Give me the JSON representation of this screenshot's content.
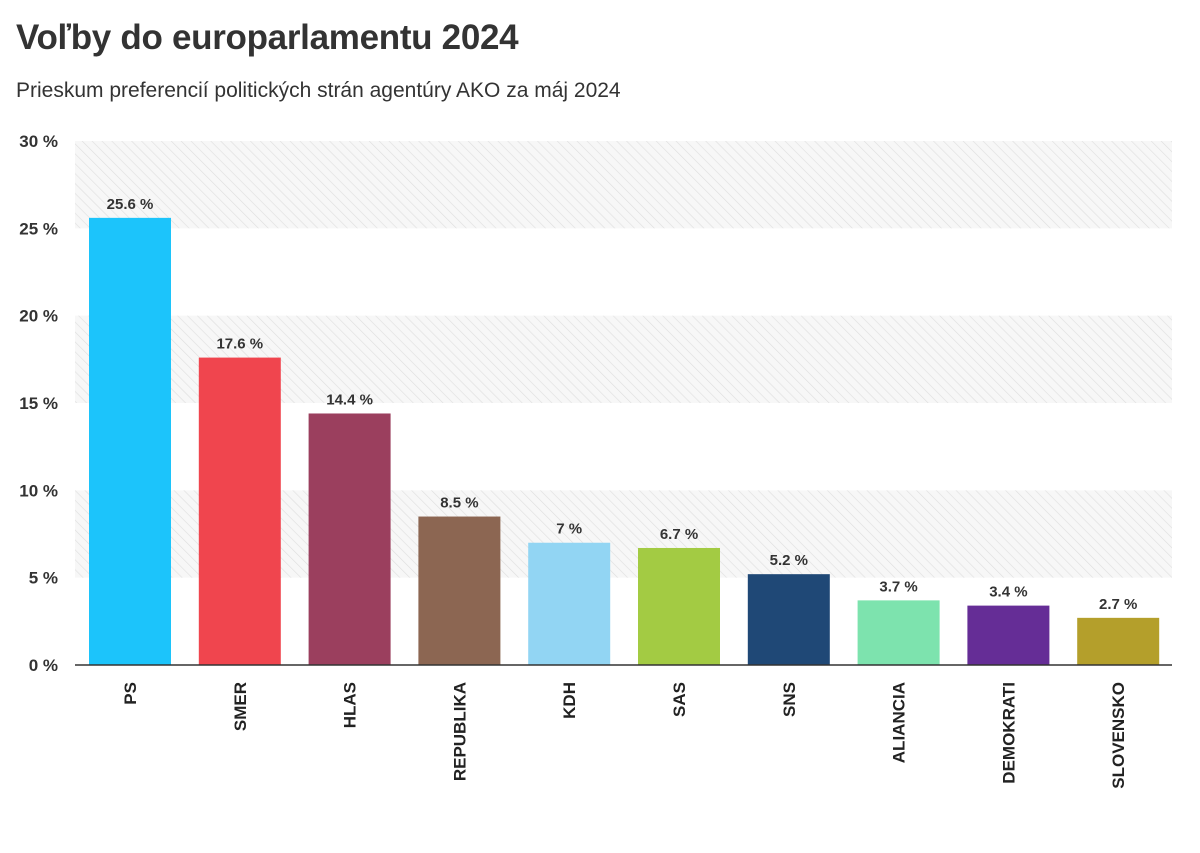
{
  "header": {
    "title": "Voľby do europarlamentu 2024",
    "subtitle": "Prieskum preferencií politických strán agentúry AKO za máj 2024"
  },
  "chart_data": {
    "type": "bar",
    "title": "Voľby do europarlamentu 2024",
    "subtitle": "Prieskum preferencií politických strán agentúry AKO za máj 2024",
    "xlabel": "",
    "ylabel": "",
    "ylim": [
      0,
      30
    ],
    "yticks": [
      0,
      5,
      10,
      15,
      20,
      25,
      30
    ],
    "ytick_suffix": " %",
    "grid": "alternating hatched bands",
    "legend": "none",
    "categories": [
      "PS",
      "SMER",
      "HLAS",
      "REPUBLIKA",
      "KDH",
      "SAS",
      "SNS",
      "ALIANCIA",
      "DEMOKRATI",
      "SLOVENSKO"
    ],
    "values": [
      25.6,
      17.6,
      14.4,
      8.5,
      7,
      6.7,
      5.2,
      3.7,
      3.4,
      2.7
    ],
    "value_labels": [
      "25.6 %",
      "17.6 %",
      "14.4 %",
      "8.5 %",
      "7 %",
      "6.7 %",
      "5.2 %",
      "3.7 %",
      "3.4 %",
      "2.7 %"
    ],
    "colors": [
      "#1CC4FB",
      "#F0454E",
      "#9B3F5E",
      "#8C6652",
      "#92D5F3",
      "#A3CB43",
      "#1F4876",
      "#7DE3AE",
      "#652D96",
      "#B49F2B"
    ]
  }
}
